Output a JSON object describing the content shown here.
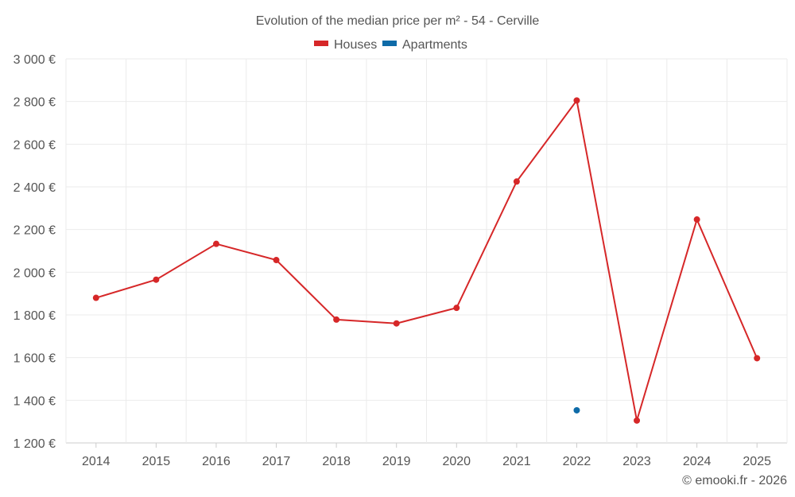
{
  "chart_data": {
    "type": "line",
    "title": "Evolution of the median price per m² - 54 - Cerville",
    "categories": [
      "2014",
      "2015",
      "2016",
      "2017",
      "2018",
      "2019",
      "2020",
      "2021",
      "2022",
      "2023",
      "2024",
      "2025"
    ],
    "ylim": [
      1200,
      3000
    ],
    "yticks": [
      1200,
      1400,
      1600,
      1800,
      2000,
      2200,
      2400,
      2600,
      2800,
      3000
    ],
    "ytick_labels": [
      "1 200 €",
      "1 400 €",
      "1 600 €",
      "1 800 €",
      "2 000 €",
      "2 200 €",
      "2 400 €",
      "2 600 €",
      "2 800 €",
      "3 000 €"
    ],
    "series": [
      {
        "name": "Houses",
        "color": "#d62728",
        "values": [
          1880,
          1965,
          2133,
          2057,
          1778,
          1760,
          1833,
          2425,
          2805,
          1305,
          2247,
          1597
        ]
      },
      {
        "name": "Apartments",
        "color": "#0e6ba8",
        "values": [
          null,
          null,
          null,
          null,
          null,
          null,
          null,
          null,
          1353,
          null,
          null,
          null
        ]
      }
    ],
    "legend_position": "top-center",
    "grid": true
  },
  "credit": "© emooki.fr - 2026"
}
